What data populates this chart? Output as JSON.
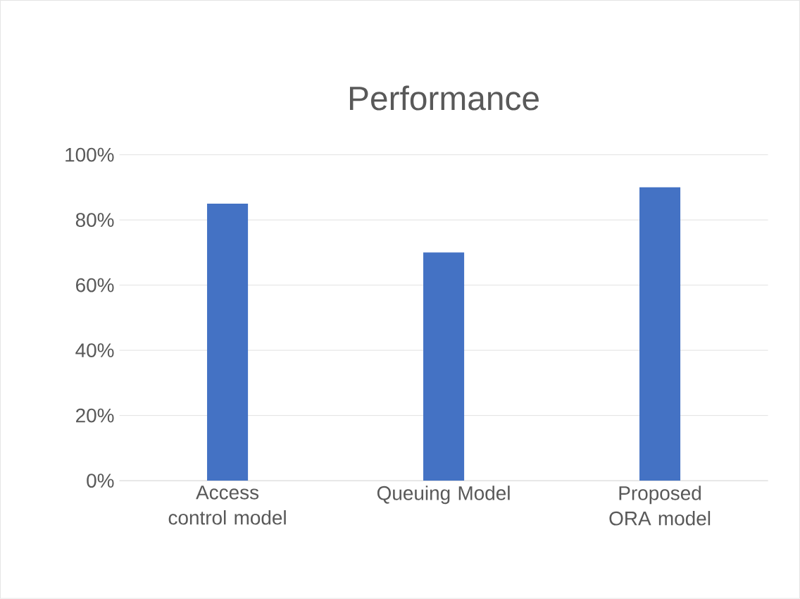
{
  "chart_data": {
    "type": "bar",
    "title": "Performance",
    "categories": [
      "Access control model",
      "Queuing Model",
      "Proposed ORA model"
    ],
    "values": [
      85,
      70,
      90
    ],
    "color": "#4472c4",
    "ylim": [
      0,
      100
    ],
    "yticks": [
      {
        "value": 0,
        "label": "0%"
      },
      {
        "value": 20,
        "label": "20%"
      },
      {
        "value": 40,
        "label": "40%"
      },
      {
        "value": 60,
        "label": "60%"
      },
      {
        "value": 80,
        "label": "80%"
      },
      {
        "value": 100,
        "label": "100%"
      }
    ],
    "grid": "y"
  }
}
